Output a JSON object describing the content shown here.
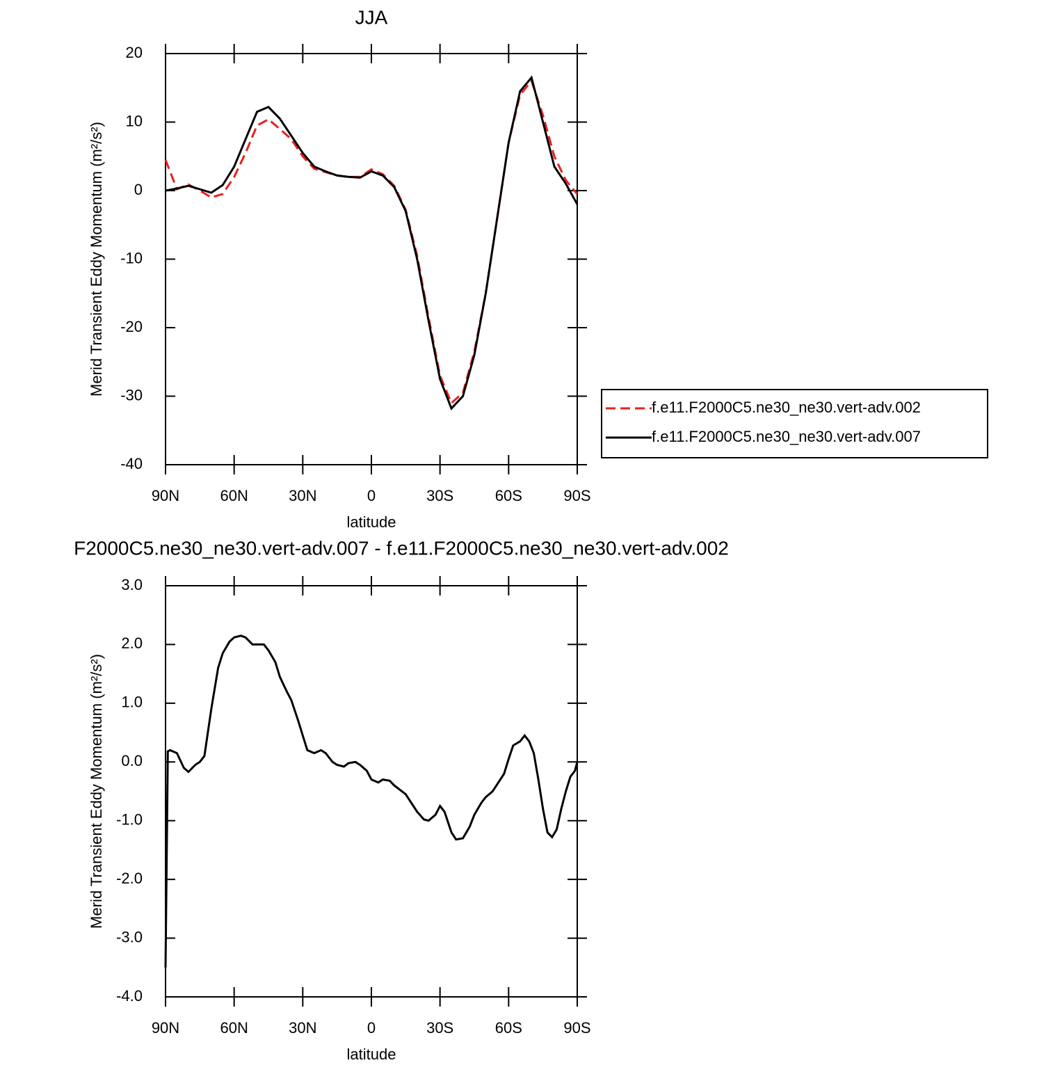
{
  "chart_data": [
    {
      "type": "line",
      "title": "JJA",
      "xlabel": "latitude",
      "ylabel": "Merid Transient Eddy Momentum (m²/s²)",
      "x": [
        90,
        85,
        80,
        75,
        70,
        65,
        60,
        55,
        50,
        45,
        40,
        35,
        30,
        25,
        20,
        15,
        10,
        5,
        0,
        -5,
        -10,
        -15,
        -20,
        -25,
        -30,
        -35,
        -40,
        -45,
        -50,
        -55,
        -60,
        -65,
        -70,
        -75,
        -80,
        -85,
        -90
      ],
      "series": [
        {
          "name": "f.e11.F2000C5.ne30_ne30.vert-adv.002",
          "color": "#e8201e",
          "linestyle": "dashed",
          "values": [
            4.5,
            0.2,
            0.9,
            0.0,
            -1.0,
            -0.5,
            2,
            5.5,
            9.5,
            10.4,
            9,
            7.5,
            5,
            3.2,
            2.7,
            2.2,
            2.0,
            2.0,
            3.1,
            2.4,
            0.7,
            -2.8,
            -9.5,
            -18.5,
            -27,
            -31,
            -29.5,
            -23.5,
            -15,
            -4,
            7,
            14,
            16,
            11,
            5,
            1.5,
            -0.5
          ]
        },
        {
          "name": "f.e11.F2000C5.ne30_ne30.vert-adv.007",
          "color": "#000000",
          "linestyle": "solid",
          "values": [
            0,
            0.3,
            0.7,
            0.2,
            -0.3,
            0.8,
            3.5,
            7.5,
            11.5,
            12.2,
            10.5,
            8,
            5.5,
            3.5,
            2.8,
            2.2,
            2.0,
            1.9,
            2.8,
            2.2,
            0.5,
            -3,
            -10,
            -19,
            -27.5,
            -31.8,
            -30,
            -24,
            -15,
            -4,
            7,
            14.5,
            16.5,
            10,
            3.5,
            1,
            -2
          ]
        }
      ],
      "xlim": [
        90,
        -90
      ],
      "xticks": [
        {
          "value": 90,
          "label": "90N"
        },
        {
          "value": 60,
          "label": "60N"
        },
        {
          "value": 30,
          "label": "30N"
        },
        0,
        {
          "value": -30,
          "label": "30S"
        },
        {
          "value": -60,
          "label": "60S"
        },
        {
          "value": -90,
          "label": "90S"
        }
      ],
      "ylim": [
        -40,
        20
      ],
      "yticks": [
        20,
        10,
        0,
        -10,
        -20,
        -30,
        -40
      ],
      "legend": "right"
    },
    {
      "type": "line",
      "title": "F2000C5.ne30_ne30.vert-adv.007 - f.e11.F2000C5.ne30_ne30.vert-adv.002",
      "xlabel": "latitude",
      "ylabel": "Merid Transient Eddy Momentum (m²/s²)",
      "x": [
        90,
        89,
        88,
        85,
        82,
        80,
        77,
        75,
        73,
        70,
        67,
        65,
        62,
        60,
        57,
        55,
        52,
        50,
        47,
        45,
        42,
        40,
        37,
        35,
        32,
        30,
        28,
        25,
        22,
        20,
        17,
        15,
        12,
        10,
        7,
        5,
        2,
        0,
        -3,
        -5,
        -8,
        -10,
        -15,
        -20,
        -23,
        -25,
        -28,
        -30,
        -32,
        -35,
        -37,
        -40,
        -43,
        -45,
        -48,
        -50,
        -53,
        -55,
        -58,
        -60,
        -62,
        -65,
        -67,
        -69,
        -71,
        -73,
        -75,
        -77,
        -79,
        -81,
        -83,
        -85,
        -87,
        -89,
        -90
      ],
      "series": [
        {
          "color": "#000000",
          "linestyle": "solid",
          "values": [
            -3.5,
            0.18,
            0.2,
            0.15,
            -0.1,
            -0.17,
            -0.05,
            0.0,
            0.1,
            0.9,
            1.6,
            1.85,
            2.05,
            2.12,
            2.15,
            2.12,
            2.0,
            2.0,
            2.0,
            1.9,
            1.7,
            1.45,
            1.2,
            1.05,
            0.7,
            0.45,
            0.2,
            0.15,
            0.2,
            0.15,
            0.0,
            -0.05,
            -0.08,
            -0.02,
            0.0,
            -0.05,
            -0.15,
            -0.3,
            -0.35,
            -0.3,
            -0.32,
            -0.4,
            -0.55,
            -0.85,
            -0.98,
            -1.0,
            -0.9,
            -0.75,
            -0.85,
            -1.2,
            -1.32,
            -1.3,
            -1.1,
            -0.9,
            -0.7,
            -0.6,
            -0.5,
            -0.38,
            -0.2,
            0.05,
            0.28,
            0.35,
            0.45,
            0.35,
            0.15,
            -0.3,
            -0.8,
            -1.2,
            -1.28,
            -1.15,
            -0.8,
            -0.5,
            -0.25,
            -0.15,
            0.0
          ]
        }
      ],
      "xlim": [
        90,
        -90
      ],
      "xticks": [
        {
          "value": 90,
          "label": "90N"
        },
        {
          "value": 60,
          "label": "60N"
        },
        {
          "value": 30,
          "label": "30N"
        },
        0,
        {
          "value": -30,
          "label": "30S"
        },
        {
          "value": -60,
          "label": "60S"
        },
        {
          "value": -90,
          "label": "90S"
        }
      ],
      "ylim": [
        -4,
        3
      ],
      "yticks": [
        {
          "value": 3,
          "label": "3.0"
        },
        {
          "value": 2,
          "label": "2.0"
        },
        {
          "value": 1,
          "label": "1.0"
        },
        {
          "value": 0,
          "label": "0.0"
        },
        {
          "value": -1,
          "label": "-1.0"
        },
        {
          "value": -2,
          "label": "-2.0"
        },
        {
          "value": -3,
          "label": "-3.0"
        },
        {
          "value": -4,
          "label": "-4.0"
        }
      ]
    }
  ]
}
